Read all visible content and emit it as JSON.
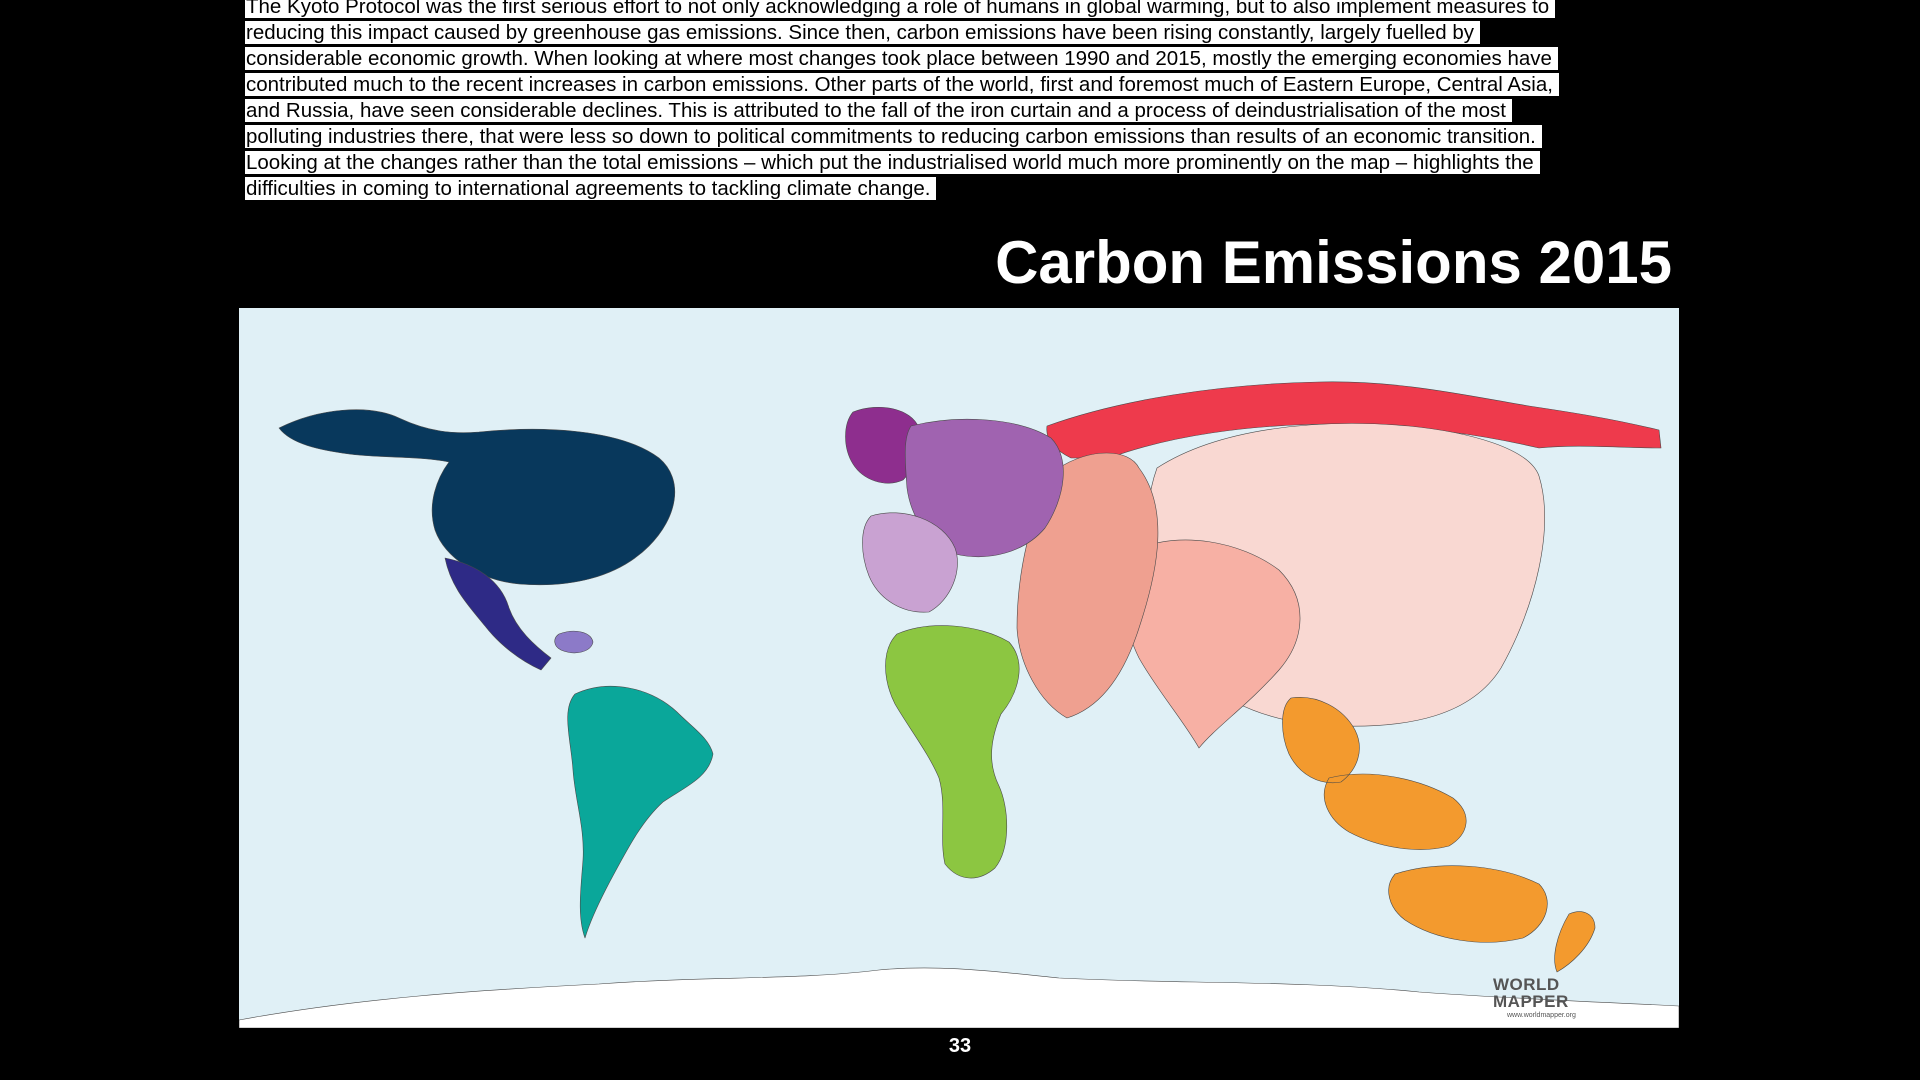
{
  "slide": {
    "body_text": "The Kyoto Protocol was the first serious effort to not only acknowledging a role of humans in global warming, but to also implement measures to reducing this impact caused by greenhouse gas emissions. Since then, carbon emissions have been rising constantly, largely fuelled by considerable economic growth. When looking at where most changes took place between 1990 and 2015, mostly the emerging economies have contributed much to the recent increases in carbon emissions. Other parts of the world, first and foremost much of Eastern Europe, Central Asia, and Russia, have seen considerable declines. This is attributed to the fall of the iron curtain and a process of deindustrialisation of the most polluting industries there, that were less so down to political commitments to reducing carbon emissions than results of an economic transition. Looking at the changes rather than the total emissions – which put the industrialised world much more prominently on the map – highlights the difficulties in coming to international agreements to tackling climate change.",
    "title": "Carbon Emissions 2015",
    "page_number": "33"
  },
  "map": {
    "logo_line1": "WORLD",
    "logo_line2": "MAPPER",
    "logo_url": "www.worldmapper.org",
    "colors": {
      "ocean": "#e0f0f6",
      "north_america": "#08385c",
      "central_america": "#2e2a86",
      "caribbean": "#8c7ac8",
      "south_america": "#0aa79a",
      "western_europe": "#8e2e8e",
      "europe": "#a063b0",
      "southern_europe": "#c9a2d2",
      "north_africa_middle_east": "#efa090",
      "sub_saharan_africa": "#8cc641",
      "russia": "#ee3a4c",
      "east_asia": "#f9d8d2",
      "south_asia": "#f7b0a4",
      "southeast_asia_oceania": "#f39a2e",
      "antarctica": "#ffffff"
    }
  }
}
